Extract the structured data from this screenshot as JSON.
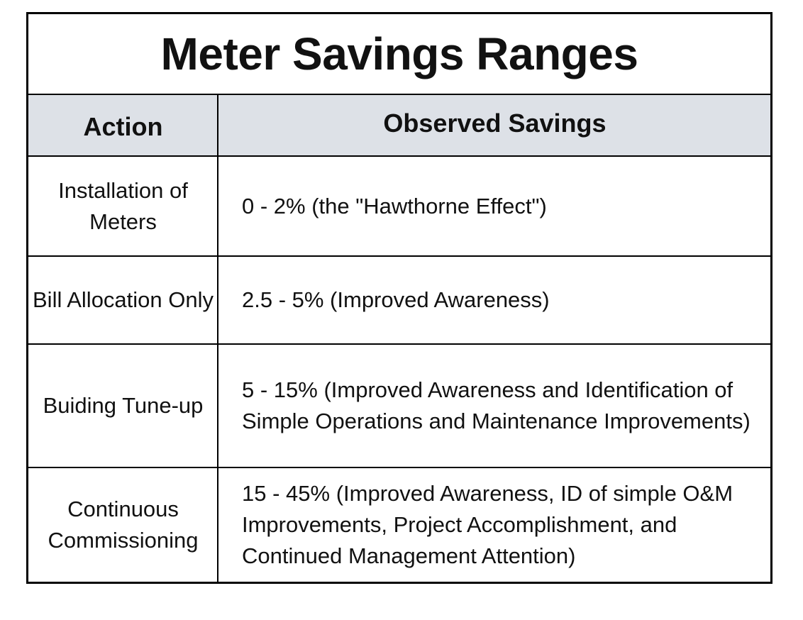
{
  "title": "Meter Savings Ranges",
  "headers": {
    "action": "Action",
    "savings": "Observed Savings"
  },
  "rows": [
    {
      "action": "Installation of Meters",
      "savings": "0 - 2% (the \"Hawthorne Effect\")"
    },
    {
      "action": "Bill Allocation Only",
      "savings": "2.5 - 5% (Improved Awareness)"
    },
    {
      "action": "Buiding Tune-up",
      "savings": "5 - 15% (Improved Awareness and Identification of Simple Operations and Maintenance Improvements)"
    },
    {
      "action": "Continuous Commissioning",
      "savings": "15 - 45% (Improved Awareness, ID of simple O&M Improvements, Project Accomplishment, and Continued Management Attention)"
    }
  ]
}
